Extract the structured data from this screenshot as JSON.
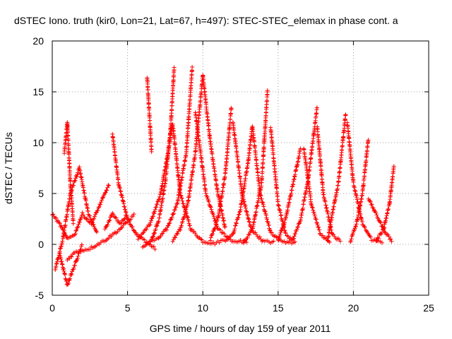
{
  "chart_data": {
    "type": "scatter",
    "title": "dSTEC Iono. truth (kir0, Lon=21, Lat=67, h=497): STEC-STEC_elemax in phase cont. a",
    "xlabel": "GPS time / hours of day 159 of year 2011",
    "ylabel": "dSTEC  / TECUs",
    "xlim": [
      0,
      25
    ],
    "ylim": [
      -5,
      20
    ],
    "xticks": [
      0,
      5,
      10,
      15,
      20,
      25
    ],
    "yticks": [
      -5,
      0,
      5,
      10,
      15,
      20
    ],
    "xtick_labels": [
      "0",
      "5",
      "10",
      "15",
      "20",
      "25"
    ],
    "ytick_labels": [
      "-5",
      "0",
      "5",
      "10",
      "15",
      "20"
    ],
    "grid": true,
    "marker": "plus",
    "color": "#ff0000",
    "arcs": [
      {
        "x": [
          4.0,
          4.4,
          5.0,
          5.6,
          6.2,
          6.9
        ],
        "y": [
          10.8,
          6.0,
          2.5,
          1.0,
          0.3,
          -0.5
        ]
      },
      {
        "x": [
          5.7,
          6.5,
          7.2,
          7.8,
          8.1
        ],
        "y": [
          0.5,
          2.0,
          5.0,
          10.0,
          17.5
        ]
      },
      {
        "x": [
          6.0,
          6.6,
          7.1,
          7.5,
          7.8,
          8.0
        ],
        "y": [
          -0.3,
          0.4,
          2.5,
          6.0,
          10.5,
          11.8
        ]
      },
      {
        "x": [
          8.0,
          8.5,
          9.2,
          10.0,
          10.8,
          11.5
        ],
        "y": [
          11.8,
          5.0,
          1.5,
          0.3,
          0.1,
          0.5
        ]
      },
      {
        "x": [
          6.3,
          6.6
        ],
        "y": [
          16.5,
          9.0
        ]
      },
      {
        "x": [
          6.5,
          7.0,
          7.6,
          8.3,
          8.9,
          9.3
        ],
        "y": [
          0.3,
          0.5,
          1.5,
          4.0,
          9.0,
          17.5
        ]
      },
      {
        "x": [
          9.5,
          10.2,
          11.0,
          12.0,
          13.0
        ],
        "y": [
          13.0,
          5.0,
          1.5,
          0.3,
          0.3
        ]
      },
      {
        "x": [
          10.0,
          10.5,
          11.0,
          11.5
        ],
        "y": [
          16.6,
          10.0,
          5.0,
          1.5
        ]
      },
      {
        "x": [
          8.0,
          8.5,
          9.0,
          9.5,
          10.0
        ],
        "y": [
          0.4,
          1.5,
          4.0,
          9.0,
          16.6
        ]
      },
      {
        "x": [
          10.5,
          11.0,
          11.5,
          11.9
        ],
        "y": [
          0.5,
          2.5,
          7.0,
          13.6
        ]
      },
      {
        "x": [
          12.0,
          12.6,
          13.2,
          14.0,
          14.8
        ],
        "y": [
          12.0,
          5.0,
          1.5,
          0.3,
          0.2
        ]
      },
      {
        "x": [
          11.5,
          12.0,
          12.5,
          13.0,
          13.3
        ],
        "y": [
          0.3,
          1.0,
          3.5,
          8.0,
          11.8
        ]
      },
      {
        "x": [
          13.3,
          13.8,
          14.5,
          15.2,
          16.0
        ],
        "y": [
          11.5,
          5.0,
          1.2,
          0.3,
          0.2
        ]
      },
      {
        "x": [
          12.7,
          13.3,
          13.9,
          14.3
        ],
        "y": [
          0.1,
          1.5,
          6.0,
          15.2
        ]
      },
      {
        "x": [
          14.5,
          15.0,
          15.5,
          16.2
        ],
        "y": [
          11.5,
          4.0,
          1.0,
          0.1
        ]
      },
      {
        "x": [
          15.0,
          15.5,
          16.0,
          16.5
        ],
        "y": [
          0.4,
          2.5,
          6.0,
          9.5
        ]
      },
      {
        "x": [
          16.7,
          17.2,
          17.8,
          18.5
        ],
        "y": [
          9.5,
          4.0,
          1.0,
          0.2
        ]
      },
      {
        "x": [
          16.0,
          16.5,
          17.0,
          17.6
        ],
        "y": [
          0.5,
          2.5,
          6.5,
          13.6
        ]
      },
      {
        "x": [
          17.6,
          18.0,
          18.6,
          19.2
        ],
        "y": [
          11.5,
          5.0,
          1.0,
          0.2
        ]
      },
      {
        "x": [
          18.3,
          18.6,
          19.0,
          19.5
        ],
        "y": [
          0.5,
          3.0,
          6.0,
          13.0
        ]
      },
      {
        "x": [
          19.6,
          20.0,
          20.6,
          21.2,
          22.0
        ],
        "y": [
          12.0,
          6.0,
          2.0,
          0.5,
          0.2
        ]
      },
      {
        "x": [
          19.8,
          20.2,
          20.6,
          21.0
        ],
        "y": [
          0.3,
          2.0,
          5.0,
          10.5
        ]
      },
      {
        "x": [
          21.0,
          21.5,
          22.0,
          22.6
        ],
        "y": [
          4.5,
          3.0,
          1.5,
          0.2
        ]
      },
      {
        "x": [
          21.5,
          22.0,
          22.4,
          22.7
        ],
        "y": [
          0.3,
          1.5,
          4.0,
          7.8
        ]
      },
      {
        "x": [
          1.0,
          1.5,
          2.5,
          3.5,
          4.5,
          5.5
        ],
        "y": [
          -1.5,
          -0.8,
          -0.4,
          0.4,
          1.5,
          3.0
        ]
      },
      {
        "x": [
          0.0,
          0.5,
          1.0,
          1.5,
          2.0,
          2.6,
          3.2,
          3.8
        ],
        "y": [
          3.0,
          2.0,
          0.5,
          1.0,
          3.0,
          2.0,
          4.0,
          6.0
        ]
      },
      {
        "x": [
          0.2,
          0.7,
          1.2,
          1.8,
          2.4,
          3.0
        ],
        "y": [
          -2.5,
          0.5,
          5.0,
          7.5,
          3.0,
          1.0
        ]
      },
      {
        "x": [
          0.8,
          1.0,
          1.2,
          1.4
        ],
        "y": [
          9.0,
          12.0,
          6.0,
          2.0
        ]
      },
      {
        "x": [
          0.5,
          1.0,
          1.5,
          2.0
        ],
        "y": [
          -1.0,
          -4.0,
          -2.0,
          0.0
        ]
      },
      {
        "x": [
          3.5,
          4.0,
          4.5,
          5.0
        ],
        "y": [
          1.5,
          3.0,
          2.0,
          3.0
        ]
      }
    ]
  }
}
